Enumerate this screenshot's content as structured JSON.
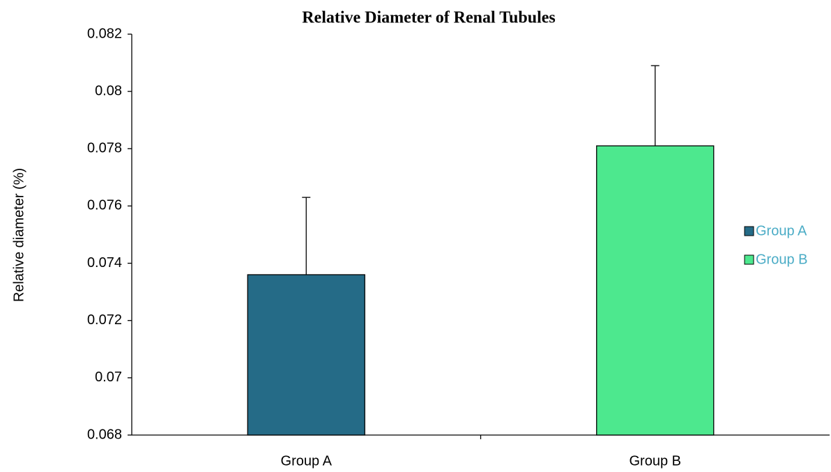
{
  "chart_data": {
    "type": "bar",
    "title": "Relative Diameter of Renal Tubules",
    "ylabel": "Relative diameter (%)",
    "categories": [
      "Group A",
      "Group B"
    ],
    "values": [
      0.0736,
      0.0781
    ],
    "errors": [
      0.0027,
      0.0028
    ],
    "colors": [
      "#256b87",
      "#4de88e"
    ],
    "ylim": [
      0.068,
      0.082
    ],
    "yticks": [
      0.068,
      0.07,
      0.072,
      0.074,
      0.076,
      0.078,
      0.08,
      0.082
    ],
    "legend": "right",
    "grid": false
  }
}
